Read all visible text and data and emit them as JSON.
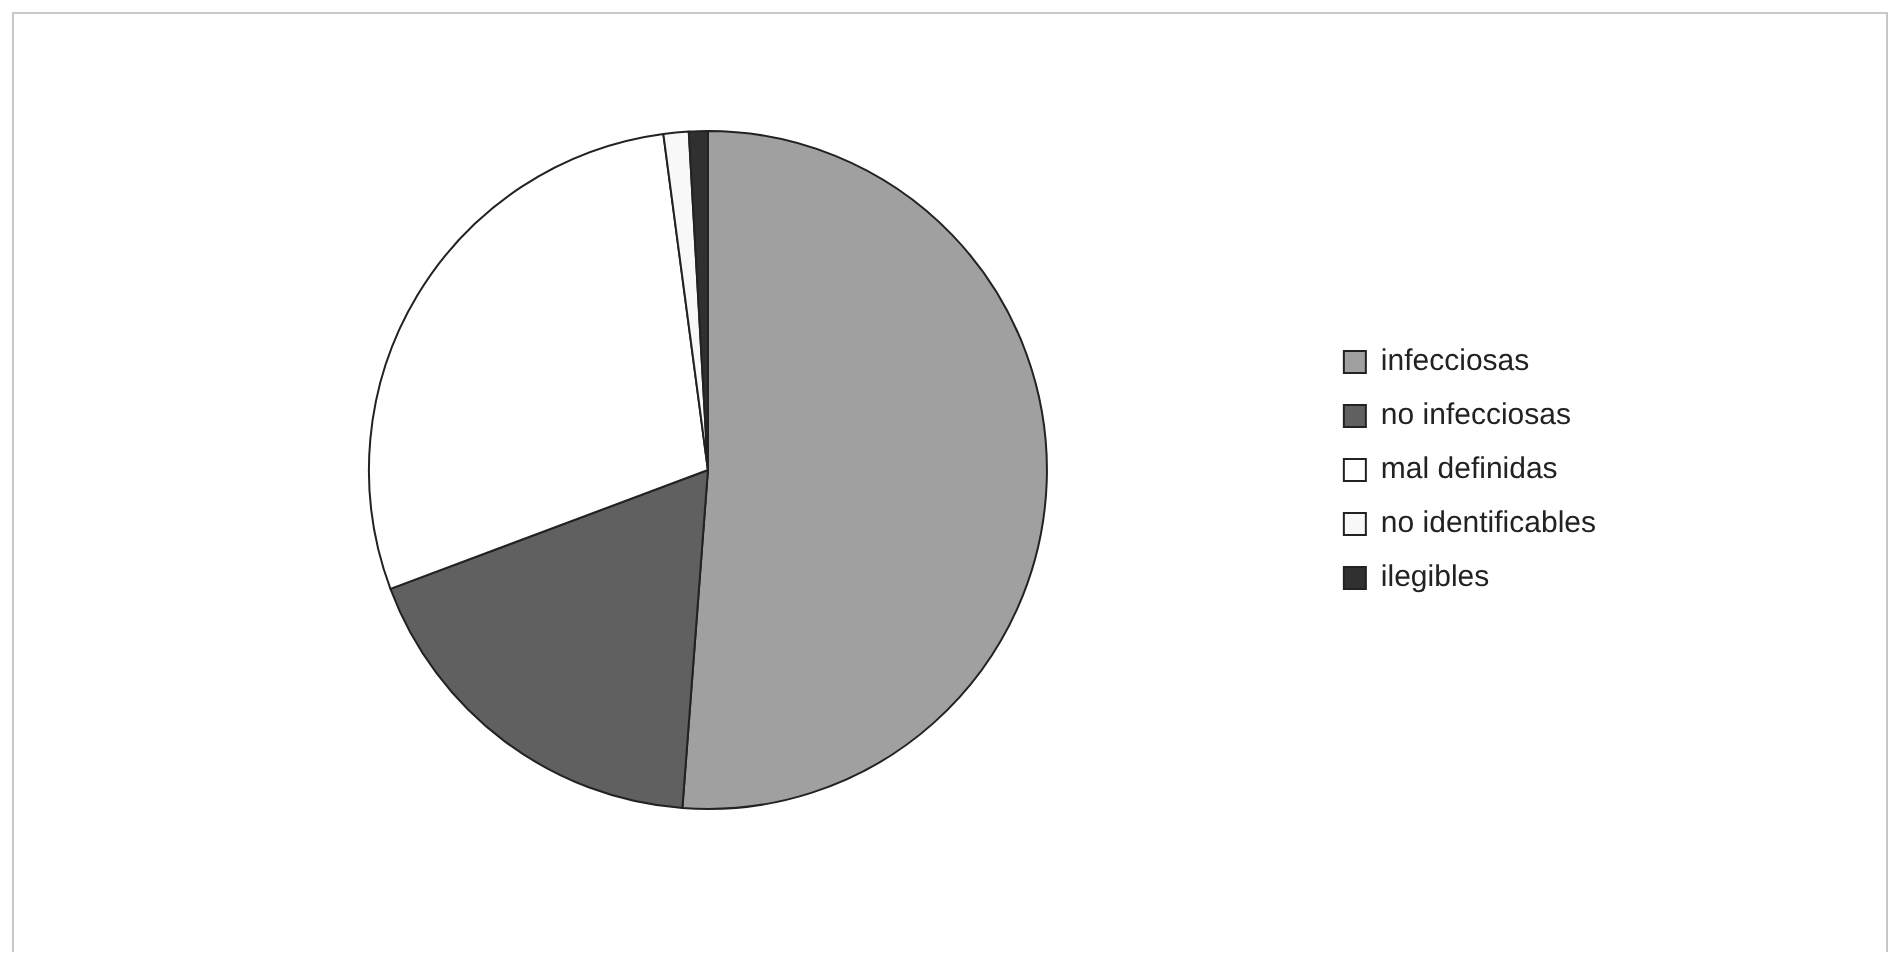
{
  "chart_data": {
    "type": "pie",
    "categories": [
      "infecciosas",
      "no infecciosas",
      "mal definidas",
      "no identificables",
      "ilegibles"
    ],
    "values": [
      51.2,
      18.1,
      28.6,
      1.2,
      0.9
    ],
    "colors": [
      "#a0a0a0",
      "#606060",
      "#ffffff",
      "#f8f8f8",
      "#303030"
    ],
    "legend": "right"
  }
}
